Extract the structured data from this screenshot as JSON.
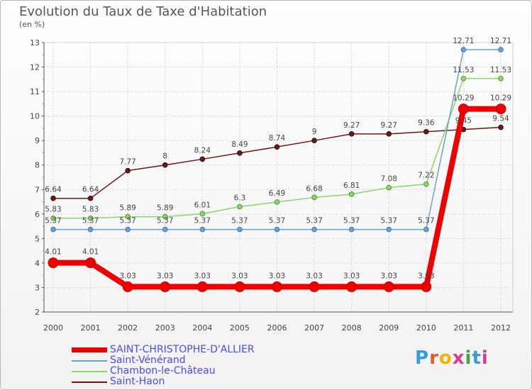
{
  "header": {
    "title": "Evolution du Taux de Taxe d'Habitation",
    "unit": "(en %)"
  },
  "logo": {
    "text": "Proxiti",
    "letter_colors": [
      "#3b9bd8",
      "#e85a2a",
      "#f0b400",
      "#d93b8a",
      "#3aa84a",
      "#3b9bd8",
      "#d93b8a"
    ]
  },
  "chart_data": {
    "type": "line",
    "title": "Evolution du Taux de Taxe d'Habitation",
    "ylabel": "(en %)",
    "xlabel": "",
    "x": [
      "2000",
      "2001",
      "2002",
      "2003",
      "2004",
      "2005",
      "2006",
      "2007",
      "2008",
      "2009",
      "2010",
      "2011",
      "2012"
    ],
    "ylim": [
      2,
      13
    ],
    "yticks": [
      "2",
      "3",
      "4",
      "5",
      "6",
      "7",
      "8",
      "9",
      "10",
      "11",
      "12",
      "13"
    ],
    "grid": true,
    "legend_position": "bottom-left",
    "series": [
      {
        "name": "Saint-Haon",
        "color": "#6b1a1a",
        "values": [
          6.64,
          6.64,
          7.77,
          8,
          8.24,
          8.49,
          8.74,
          9,
          9.27,
          9.27,
          9.36,
          9.45,
          9.54
        ],
        "labels": [
          "6.64",
          "6.64",
          "7.77",
          "8",
          "8.24",
          "8.49",
          "8.74",
          "9",
          "9.27",
          "9.27",
          "9.36",
          "9.45",
          "9.54"
        ]
      },
      {
        "name": "Chambon-le-Château",
        "color": "#8cd56a",
        "values": [
          5.83,
          5.83,
          5.89,
          5.89,
          6.01,
          6.3,
          6.49,
          6.68,
          6.81,
          7.08,
          7.22,
          11.53,
          11.53
        ],
        "labels": [
          "5.83",
          "5.83",
          "5.89",
          "5.89",
          "6.01",
          "6.3",
          "6.49",
          "6.68",
          "6.81",
          "7.08",
          "7.22",
          "11.53",
          "11.53"
        ]
      },
      {
        "name": "Saint-Vénérand",
        "color": "#6aa2cf",
        "values": [
          5.37,
          5.37,
          5.37,
          5.37,
          5.37,
          5.37,
          5.37,
          5.37,
          5.37,
          5.37,
          5.37,
          12.71,
          12.71
        ],
        "labels": [
          "5.37",
          "5.37",
          "5.37",
          "5.37",
          "5.37",
          "5.37",
          "5.37",
          "5.37",
          "5.37",
          "5.37",
          "5.37",
          "12.71",
          "12.71"
        ]
      },
      {
        "name": "SAINT-CHRISTOPHE-D'ALLIER",
        "color": "#ee0000",
        "values": [
          4.01,
          4.01,
          3.03,
          3.03,
          3.03,
          3.03,
          3.03,
          3.03,
          3.03,
          3.03,
          3.03,
          10.29,
          10.29
        ],
        "labels": [
          "4.01",
          "4.01",
          "3.03",
          "3.03",
          "3.03",
          "3.03",
          "3.03",
          "3.03",
          "3.03",
          "3.03",
          "3.03",
          "10.29",
          "10.29"
        ]
      }
    ]
  },
  "legend": [
    {
      "label": "SAINT-CHRISTOPHE-D'ALLIER",
      "color": "#ee0000"
    },
    {
      "label": "Saint-Vénérand",
      "color": "#6aa2cf"
    },
    {
      "label": "Chambon-le-Château",
      "color": "#8cd56a"
    },
    {
      "label": "Saint-Haon",
      "color": "#6b1a1a"
    }
  ]
}
